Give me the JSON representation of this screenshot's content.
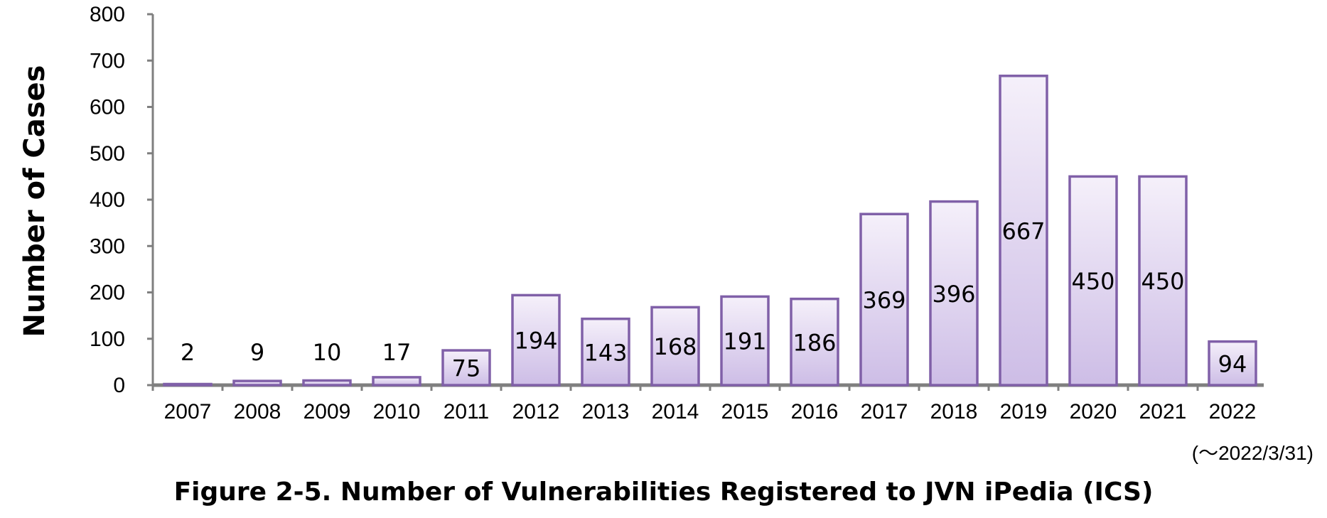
{
  "chart_data": {
    "type": "bar",
    "categories": [
      "2007",
      "2008",
      "2009",
      "2010",
      "2011",
      "2012",
      "2013",
      "2014",
      "2015",
      "2016",
      "2017",
      "2018",
      "2019",
      "2020",
      "2021",
      "2022"
    ],
    "values": [
      2,
      9,
      10,
      17,
      75,
      194,
      143,
      168,
      191,
      186,
      369,
      396,
      667,
      450,
      450,
      94
    ],
    "ylabel": "Number of Cases",
    "ylim": [
      0,
      800
    ],
    "yticks": [
      0,
      100,
      200,
      300,
      400,
      500,
      600,
      700,
      800
    ],
    "grid": false,
    "legend": "none",
    "note": "(～2022/3/31)",
    "caption": "Figure 2-5. Number of Vulnerabilities Registered to JVN iPedia (ICS)",
    "colors": {
      "bar_fill_top": "#f5f0fa",
      "bar_fill_bottom": "#cdbde6",
      "bar_border": "#8060a8",
      "axis": "#7f7f7f"
    }
  }
}
